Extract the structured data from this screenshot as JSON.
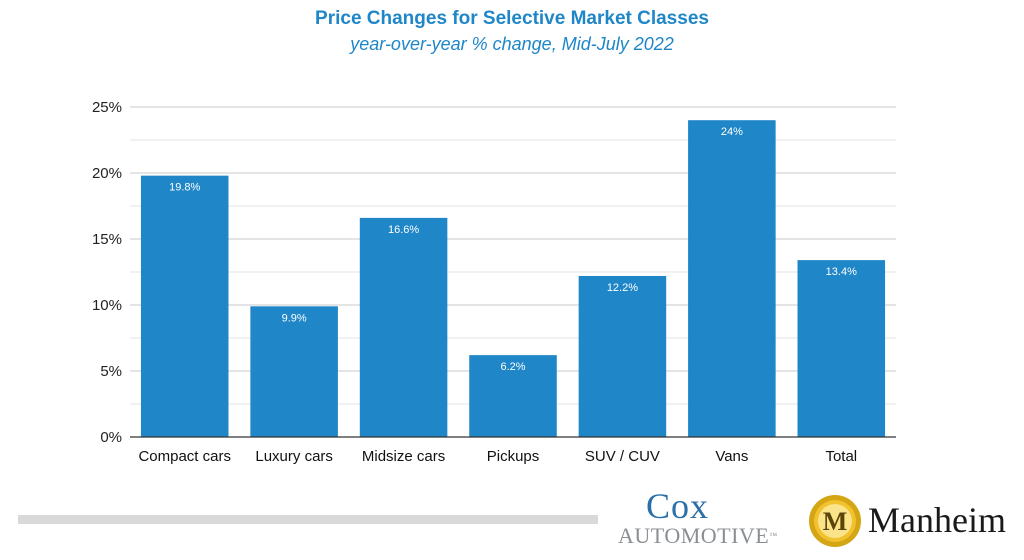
{
  "chart_data": {
    "type": "bar",
    "title": "Price Changes for Selective Market Classes",
    "subtitle": "year-over-year % change, Mid-July 2022",
    "categories": [
      "Compact cars",
      "Luxury cars",
      "Midsize cars",
      "Pickups",
      "SUV / CUV",
      "Vans",
      "Total"
    ],
    "values": [
      19.8,
      9.9,
      16.6,
      6.2,
      12.2,
      24,
      13.4
    ],
    "data_labels": [
      "19.8%",
      "9.9%",
      "16.6%",
      "6.2%",
      "12.2%",
      "24%",
      "13.4%"
    ],
    "yticks": [
      0,
      5,
      10,
      15,
      20,
      25
    ],
    "ytick_labels": [
      "0%",
      "5%",
      "10%",
      "15%",
      "20%",
      "25%"
    ],
    "ylim": [
      0,
      25
    ],
    "minor_gridlines_every": 2.5,
    "grid": true,
    "bar_color": "#1f86c8",
    "label_color": "#ffffff"
  },
  "branding": {
    "cox_name": "Cox",
    "cox_sub": "AUTOMOTIVE",
    "cox_tm": "™",
    "manheim_letter": "M",
    "manheim_name": "Manheim"
  }
}
